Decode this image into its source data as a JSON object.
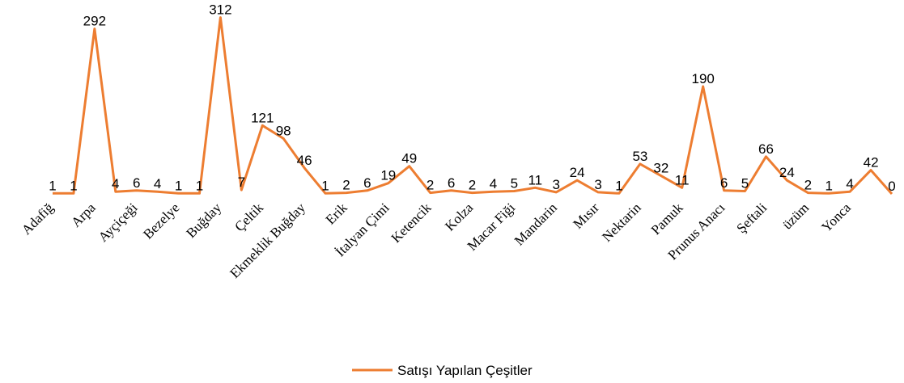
{
  "chart_data": {
    "type": "line",
    "categories": [
      "Adafiğ",
      null,
      "Arpa",
      null,
      "Ayçiçeği",
      null,
      "Bezelye",
      null,
      "Buğday",
      null,
      "Çeltik",
      null,
      "Ekmeklik Buğday",
      null,
      "Erik",
      null,
      "İtalyan Çimi",
      null,
      "Ketencik",
      null,
      "Kolza",
      null,
      "Macar Fiği",
      null,
      "Mandarin",
      null,
      "Mısır",
      null,
      "Nektarin",
      null,
      "Pamuk",
      null,
      "Prunus Anacı",
      null,
      "Şeftali",
      null,
      "üzüm",
      null,
      "Yonca",
      null,
      null
    ],
    "series": [
      {
        "name": "Satışı Yapılan Çeşitler",
        "color": "#ed7d31",
        "values": [
          1,
          1,
          292,
          4,
          6,
          4,
          1,
          1,
          312,
          7,
          121,
          98,
          46,
          1,
          2,
          6,
          19,
          49,
          2,
          6,
          2,
          4,
          5,
          11,
          3,
          24,
          3,
          1,
          53,
          32,
          11,
          190,
          6,
          5,
          66,
          24,
          2,
          1,
          4,
          42,
          0
        ]
      }
    ],
    "ylim": [
      0,
      320
    ],
    "legend": "bottom"
  }
}
